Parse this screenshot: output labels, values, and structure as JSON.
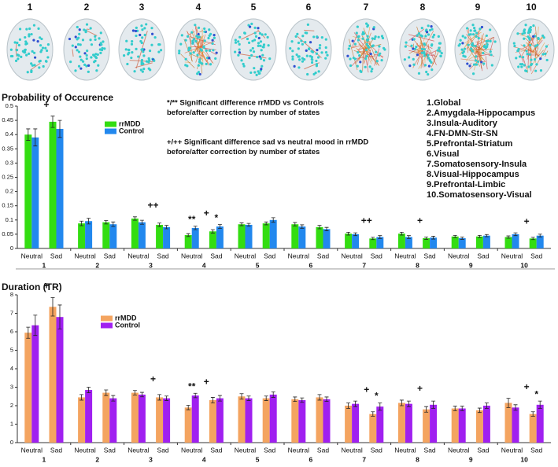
{
  "brain_panels": [
    "1",
    "2",
    "3",
    "4",
    "5",
    "6",
    "7",
    "8",
    "9",
    "10"
  ],
  "state_legend": [
    "1.Global",
    "2.Amygdala-Hippocampus",
    "3.Insula-Auditory",
    "4.FN-DMN-Str-SN",
    "5.Prefrontal-Striatum",
    "6.Visual",
    "7.Somatosensory-Insula",
    "8.Visual-Hippocampus",
    "9.Prefrontal-Limbic",
    "10.Somatosensory-Visual"
  ],
  "chart_data": [
    {
      "type": "bar",
      "title": "Probability of Occurence",
      "categories": [
        "Neutral",
        "Sad",
        "Neutral",
        "Sad",
        "Neutral",
        "Sad",
        "Neutral",
        "Sad",
        "Neutral",
        "Sad",
        "Neutral",
        "Sad",
        "Neutral",
        "Sad",
        "Neutral",
        "Sad",
        "Neutral",
        "Sad",
        "Neutral",
        "Sad"
      ],
      "groups": [
        "1",
        "2",
        "3",
        "4",
        "5",
        "6",
        "7",
        "8",
        "9",
        "10"
      ],
      "series": [
        {
          "name": "rrMDD",
          "color": "#33dd11",
          "values": [
            0.4,
            0.445,
            0.088,
            0.092,
            0.105,
            0.083,
            0.047,
            0.06,
            0.085,
            0.088,
            0.085,
            0.075,
            0.052,
            0.035,
            0.052,
            0.036,
            0.042,
            0.042,
            0.04,
            0.035
          ],
          "errors": [
            0.02,
            0.02,
            0.008,
            0.006,
            0.006,
            0.006,
            0.005,
            0.006,
            0.005,
            0.005,
            0.006,
            0.006,
            0.005,
            0.004,
            0.005,
            0.004,
            0.004,
            0.004,
            0.004,
            0.004
          ]
        },
        {
          "name": "Control",
          "color": "#2288ee",
          "values": [
            0.39,
            0.42,
            0.096,
            0.085,
            0.092,
            0.075,
            0.072,
            0.077,
            0.083,
            0.1,
            0.077,
            0.068,
            0.05,
            0.04,
            0.04,
            0.038,
            0.036,
            0.045,
            0.05,
            0.045
          ],
          "errors": [
            0.03,
            0.03,
            0.01,
            0.008,
            0.007,
            0.006,
            0.006,
            0.007,
            0.005,
            0.008,
            0.006,
            0.006,
            0.005,
            0.005,
            0.005,
            0.005,
            0.004,
            0.004,
            0.005,
            0.005
          ]
        }
      ],
      "ylim": [
        0,
        0.5
      ],
      "yticks": [
        0,
        0.05,
        0.1,
        0.15,
        0.2,
        0.25,
        0.3,
        0.35,
        0.4,
        0.45,
        0.5
      ],
      "group_markers": [
        "+",
        null,
        "++",
        "+",
        null,
        null,
        "++",
        "+",
        null,
        "+"
      ],
      "bar_markers": [
        null,
        null,
        null,
        null,
        null,
        null,
        "**",
        "*",
        null,
        null,
        null,
        null,
        null,
        null,
        null,
        null,
        null,
        null,
        null,
        null
      ],
      "notes": [
        "*/** Significant difference rrMDD vs Controls",
        "before/after correction by number of states",
        "+/++ Significant difference sad vs neutral mood in rrMDD",
        "before/after correction by number of states"
      ]
    },
    {
      "type": "bar",
      "title": "Duration (TR)",
      "categories": [
        "Neutral",
        "Sad",
        "Neutral",
        "Sad",
        "Neutral",
        "Sad",
        "Neutral",
        "Sad",
        "Neutral",
        "Sad",
        "Neutral",
        "Sad",
        "Neutral",
        "Sad",
        "Neutral",
        "Sad",
        "Neutral",
        "Sad",
        "Neutral",
        "Sad"
      ],
      "groups": [
        "1",
        "2",
        "3",
        "4",
        "5",
        "6",
        "7",
        "8",
        "9",
        "10"
      ],
      "series": [
        {
          "name": "rrMDD",
          "color": "#f4a460",
          "values": [
            5.95,
            7.35,
            2.45,
            2.7,
            2.7,
            2.45,
            1.9,
            2.3,
            2.5,
            2.4,
            2.35,
            2.45,
            2.0,
            1.55,
            2.15,
            1.8,
            1.85,
            1.75,
            2.15,
            1.55
          ],
          "errors": [
            0.3,
            0.5,
            0.15,
            0.15,
            0.12,
            0.15,
            0.12,
            0.15,
            0.15,
            0.12,
            0.12,
            0.15,
            0.15,
            0.12,
            0.15,
            0.15,
            0.12,
            0.12,
            0.25,
            0.12
          ]
        },
        {
          "name": "Control",
          "color": "#a020f0",
          "values": [
            6.35,
            6.8,
            2.85,
            2.4,
            2.6,
            2.4,
            2.55,
            2.4,
            2.4,
            2.6,
            2.3,
            2.35,
            2.1,
            1.95,
            2.1,
            2.05,
            1.85,
            2.0,
            1.9,
            2.05
          ],
          "errors": [
            0.55,
            0.65,
            0.15,
            0.15,
            0.12,
            0.12,
            0.12,
            0.15,
            0.12,
            0.15,
            0.12,
            0.12,
            0.15,
            0.2,
            0.15,
            0.2,
            0.12,
            0.15,
            0.15,
            0.2
          ]
        }
      ],
      "ylim": [
        0,
        8
      ],
      "yticks": [
        0,
        1,
        2,
        3,
        4,
        5,
        6,
        7,
        8
      ],
      "group_markers": [
        "+",
        null,
        "+",
        "+",
        null,
        null,
        "+",
        "+",
        null,
        "+"
      ],
      "bar_markers": [
        null,
        null,
        null,
        null,
        null,
        null,
        "**",
        null,
        null,
        null,
        null,
        null,
        null,
        "*",
        null,
        null,
        null,
        null,
        null,
        "*"
      ]
    }
  ]
}
